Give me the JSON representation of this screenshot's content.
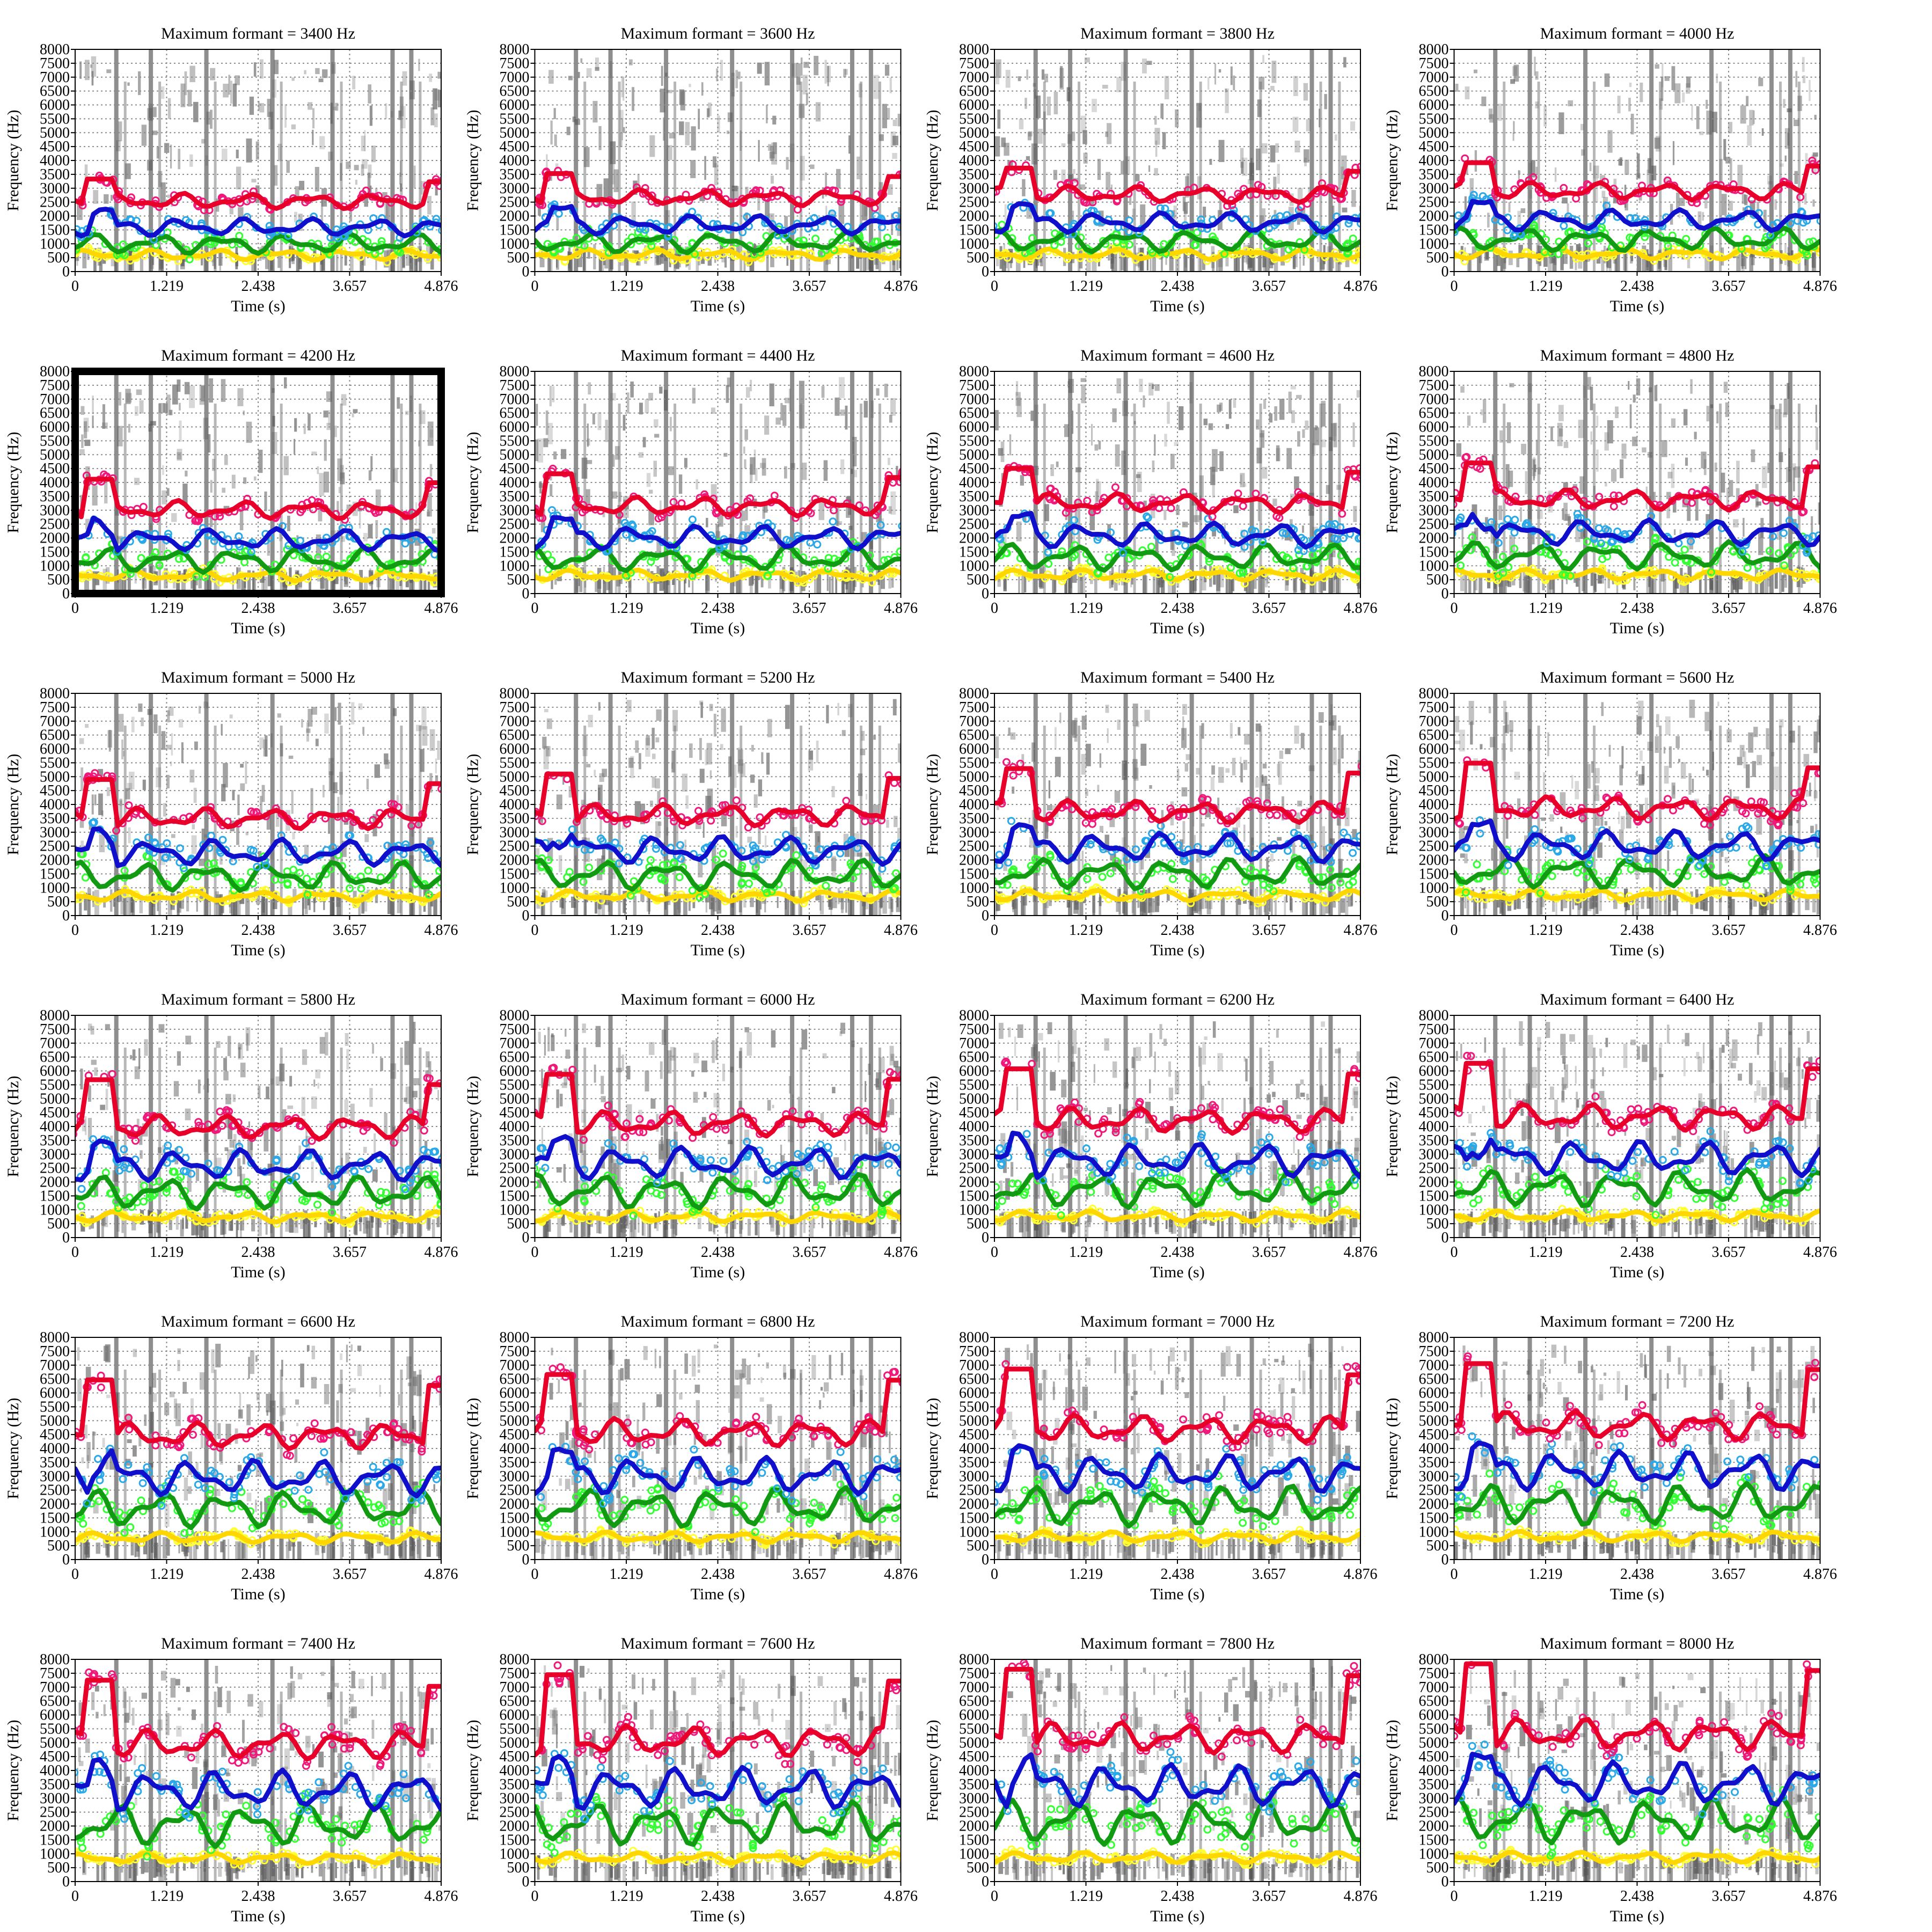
{
  "chart_data": {
    "type": "line",
    "x_axis": {
      "label": "Time (s)",
      "ticks": [
        "0",
        "1.219",
        "2.438",
        "3.657",
        "4.876"
      ],
      "range": [
        0,
        4.876
      ]
    },
    "y_axis": {
      "label": "Frequency (Hz)",
      "ticks": [
        "0",
        "500",
        "1000",
        "1500",
        "2000",
        "2500",
        "3000",
        "3500",
        "4000",
        "4500",
        "5000",
        "5500",
        "6000",
        "6500",
        "7000",
        "7500",
        "8000"
      ],
      "range": [
        0,
        8000
      ]
    },
    "grid": true,
    "background": "spectrogram (grayscale)",
    "selected_panel_max": 4200,
    "colors": {
      "F1_points": "#ffff33",
      "F1_track": "#ffd700",
      "F2_points": "#33ff33",
      "F2_track": "#129b12",
      "F3_points": "#2aa8e8",
      "F3_track": "#1010cc",
      "F4_points": "#f0187a",
      "F4_track": "#e8002a"
    },
    "panels": [
      {
        "title": "Maximum formant = 3400 Hz",
        "max": 3400
      },
      {
        "title": "Maximum formant = 3600 Hz",
        "max": 3600
      },
      {
        "title": "Maximum formant = 3800 Hz",
        "max": 3800
      },
      {
        "title": "Maximum formant = 4000 Hz",
        "max": 4000
      },
      {
        "title": "Maximum formant = 4200 Hz",
        "max": 4200
      },
      {
        "title": "Maximum formant = 4400 Hz",
        "max": 4400
      },
      {
        "title": "Maximum formant = 4600 Hz",
        "max": 4600
      },
      {
        "title": "Maximum formant = 4800 Hz",
        "max": 4800
      },
      {
        "title": "Maximum formant = 5000 Hz",
        "max": 5000
      },
      {
        "title": "Maximum formant = 5200 Hz",
        "max": 5200
      },
      {
        "title": "Maximum formant = 5400 Hz",
        "max": 5400
      },
      {
        "title": "Maximum formant = 5600 Hz",
        "max": 5600
      },
      {
        "title": "Maximum formant = 5800 Hz",
        "max": 5800
      },
      {
        "title": "Maximum formant = 6000 Hz",
        "max": 6000
      },
      {
        "title": "Maximum formant = 6200 Hz",
        "max": 6200
      },
      {
        "title": "Maximum formant = 6400 Hz",
        "max": 6400
      },
      {
        "title": "Maximum formant = 6600 Hz",
        "max": 6600
      },
      {
        "title": "Maximum formant = 6800 Hz",
        "max": 6800
      },
      {
        "title": "Maximum formant = 7000 Hz",
        "max": 7000
      },
      {
        "title": "Maximum formant = 7200 Hz",
        "max": 7200
      },
      {
        "title": "Maximum formant = 7400 Hz",
        "max": 7400
      },
      {
        "title": "Maximum formant = 7600 Hz",
        "max": 7600
      },
      {
        "title": "Maximum formant = 7800 Hz",
        "max": 7800
      },
      {
        "title": "Maximum formant = 8000 Hz",
        "max": 8000
      }
    ]
  }
}
